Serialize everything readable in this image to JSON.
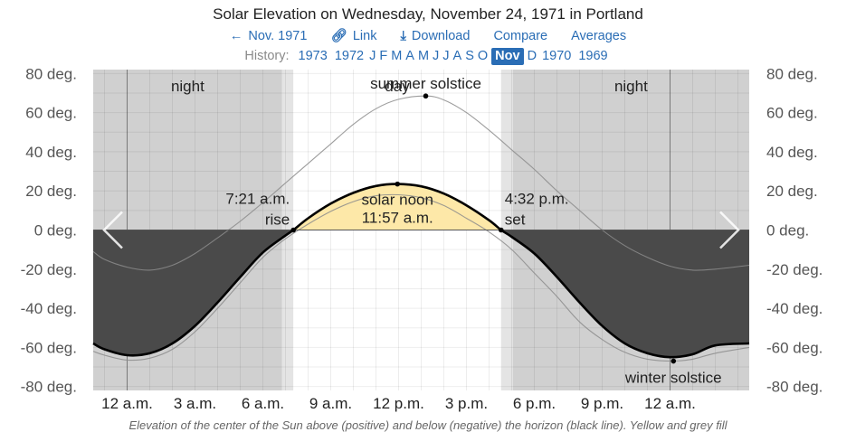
{
  "header": {
    "title": "Solar Elevation on Wednesday, November 24, 1971 in Portland"
  },
  "nav": {
    "prev_label": "Nov. 1971",
    "link_label": "Link",
    "download_label": "Download",
    "compare_label": "Compare",
    "averages_label": "Averages"
  },
  "history": {
    "label": "History:",
    "items": [
      {
        "label": "1973",
        "selected": false
      },
      {
        "label": "1972",
        "selected": false
      },
      {
        "label": "J",
        "selected": false
      },
      {
        "label": "F",
        "selected": false
      },
      {
        "label": "M",
        "selected": false
      },
      {
        "label": "A",
        "selected": false
      },
      {
        "label": "M",
        "selected": false
      },
      {
        "label": "J",
        "selected": false
      },
      {
        "label": "J",
        "selected": false
      },
      {
        "label": "A",
        "selected": false
      },
      {
        "label": "S",
        "selected": false
      },
      {
        "label": "O",
        "selected": false
      },
      {
        "label": "Nov",
        "selected": true
      },
      {
        "label": "D",
        "selected": false
      },
      {
        "label": "1970",
        "selected": false
      },
      {
        "label": "1969",
        "selected": false
      }
    ]
  },
  "icons": {
    "prev": "arrow-left-icon",
    "link": "link-icon",
    "download": "download-icon",
    "chart_prev": "chevron-left-icon",
    "chart_next": "chevron-right-icon"
  },
  "chart_data": {
    "type": "line",
    "x_unit": "hours after midnight",
    "xlim": [
      -1.5,
      27.5
    ],
    "ylim": [
      -82,
      82
    ],
    "x_ticks": [
      {
        "x": 0,
        "label": "12 a.m."
      },
      {
        "x": 3,
        "label": "3 a.m."
      },
      {
        "x": 6,
        "label": "6 a.m."
      },
      {
        "x": 9,
        "label": "9 a.m."
      },
      {
        "x": 12,
        "label": "12 p.m."
      },
      {
        "x": 15,
        "label": "3 p.m."
      },
      {
        "x": 18,
        "label": "6 p.m."
      },
      {
        "x": 21,
        "label": "9 p.m."
      },
      {
        "x": 24,
        "label": "12 a.m."
      }
    ],
    "y_ticks": [
      {
        "y": 80,
        "label": "80 deg."
      },
      {
        "y": 60,
        "label": "60 deg."
      },
      {
        "y": 40,
        "label": "40 deg."
      },
      {
        "y": 20,
        "label": "20 deg."
      },
      {
        "y": 0,
        "label": "0 deg."
      },
      {
        "y": -20,
        "label": "-20 deg."
      },
      {
        "y": -40,
        "label": "-40 deg."
      },
      {
        "y": -60,
        "label": "-60 deg."
      },
      {
        "y": -80,
        "label": "-80 deg."
      }
    ],
    "periods": [
      {
        "label": "night",
        "start": -1.5,
        "end": 6.85,
        "shade": "night"
      },
      {
        "label": "",
        "start": 6.85,
        "end": 7.35,
        "shade": "twilight"
      },
      {
        "label": "day",
        "start": 7.35,
        "end": 16.53,
        "shade": "day"
      },
      {
        "label": "",
        "start": 16.53,
        "end": 17.05,
        "shade": "twilight"
      },
      {
        "label": "night",
        "start": 17.05,
        "end": 27.5,
        "shade": "night"
      }
    ],
    "series": [
      {
        "role": "day",
        "style": "bold",
        "points": [
          [
            -1.5,
            -58
          ],
          [
            -1,
            -61
          ],
          [
            0,
            -64
          ],
          [
            1,
            -63
          ],
          [
            2,
            -58
          ],
          [
            3,
            -49
          ],
          [
            4,
            -37
          ],
          [
            5,
            -24
          ],
          [
            6,
            -11.5
          ],
          [
            7,
            -2.8
          ],
          [
            7.35,
            0
          ],
          [
            8,
            6
          ],
          [
            9,
            13.5
          ],
          [
            10,
            19
          ],
          [
            11,
            22.5
          ],
          [
            11.95,
            23.5
          ],
          [
            13,
            22.3
          ],
          [
            14,
            18.6
          ],
          [
            15,
            12.6
          ],
          [
            16,
            5
          ],
          [
            16.53,
            0
          ],
          [
            17,
            -3.5
          ],
          [
            18,
            -12
          ],
          [
            19,
            -24
          ],
          [
            20,
            -37
          ],
          [
            21,
            -49
          ],
          [
            22,
            -58
          ],
          [
            23,
            -63
          ],
          [
            24,
            -65
          ],
          [
            25,
            -63.5
          ],
          [
            26,
            -59
          ],
          [
            27.5,
            -58
          ]
        ]
      },
      {
        "role": "summer solstice",
        "style": "thin",
        "points": [
          [
            -1.5,
            -11
          ],
          [
            -1,
            -15
          ],
          [
            0,
            -19
          ],
          [
            1,
            -20.5
          ],
          [
            2,
            -18
          ],
          [
            3,
            -12
          ],
          [
            4,
            -4
          ],
          [
            5,
            4.5
          ],
          [
            6,
            14
          ],
          [
            7,
            24
          ],
          [
            8,
            34
          ],
          [
            9,
            44
          ],
          [
            10,
            54
          ],
          [
            11,
            62
          ],
          [
            12,
            66.8
          ],
          [
            13.2,
            68.5
          ],
          [
            14,
            66.5
          ],
          [
            15,
            60
          ],
          [
            16,
            51
          ],
          [
            17,
            41
          ],
          [
            18,
            31
          ],
          [
            19,
            20
          ],
          [
            20,
            10
          ],
          [
            21,
            0
          ],
          [
            22,
            -8
          ],
          [
            23,
            -14
          ],
          [
            24,
            -18.5
          ],
          [
            25,
            -20.5
          ],
          [
            26,
            -20
          ],
          [
            27.5,
            -18
          ]
        ]
      },
      {
        "role": "winter solstice",
        "style": "thin",
        "points": [
          [
            -1.5,
            -62
          ],
          [
            -1,
            -64
          ],
          [
            0,
            -66.5
          ],
          [
            1,
            -65.5
          ],
          [
            2,
            -61
          ],
          [
            3,
            -52
          ],
          [
            4,
            -40
          ],
          [
            5,
            -27
          ],
          [
            6,
            -14
          ],
          [
            7,
            -4.5
          ],
          [
            8,
            3
          ],
          [
            9,
            9.5
          ],
          [
            10,
            14.5
          ],
          [
            11,
            17.5
          ],
          [
            12,
            18
          ],
          [
            13,
            16.5
          ],
          [
            14,
            12.5
          ],
          [
            15,
            6
          ],
          [
            16,
            -1
          ],
          [
            17,
            -10
          ],
          [
            18,
            -22
          ],
          [
            19,
            -34
          ],
          [
            20,
            -47
          ],
          [
            21,
            -56
          ],
          [
            22,
            -62.5
          ],
          [
            23,
            -66
          ],
          [
            24.15,
            -67
          ],
          [
            25,
            -66
          ],
          [
            26,
            -63
          ],
          [
            27.5,
            -60
          ]
        ]
      }
    ],
    "markers": [
      {
        "x": 13.2,
        "y": 68.5,
        "label": "summer solstice"
      },
      {
        "x": 24.15,
        "y": -67,
        "label": "winter solstice"
      },
      {
        "x": 11.95,
        "y": 23.5,
        "label": "solar noon",
        "sublabel": "11:57 a.m."
      },
      {
        "x": 7.35,
        "y": 0,
        "label": "7:21 a.m.",
        "sublabel": "rise"
      },
      {
        "x": 16.53,
        "y": 0,
        "label": "4:32 p.m.",
        "sublabel": "set"
      }
    ],
    "colors": {
      "night": "#d0d0d0",
      "twilight": "#e4e4e4",
      "day": "#ffffff",
      "below_horizon": "#4a4a4a",
      "daylight_fill": "#fde8a8",
      "link": "#2a6db5"
    }
  },
  "caption": "Elevation of the center of the Sun above (positive) and below (negative) the horizon (black line). Yellow and grey fill"
}
